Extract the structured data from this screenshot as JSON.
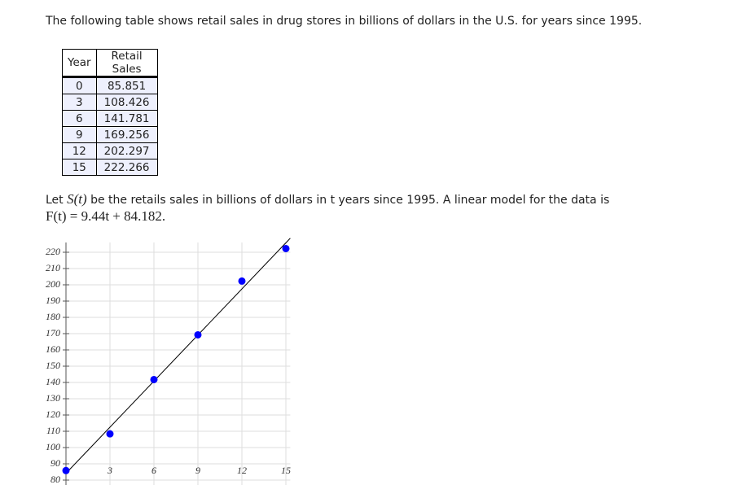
{
  "intro": "The following table shows retail sales in drug stores in billions of dollars in the U.S. for years since 1995.",
  "table": {
    "header": [
      "Year",
      "Retail Sales"
    ],
    "rows": [
      [
        "0",
        "85.851"
      ],
      [
        "3",
        "108.426"
      ],
      [
        "6",
        "141.781"
      ],
      [
        "9",
        "169.256"
      ],
      [
        "12",
        "202.297"
      ],
      [
        "15",
        "222.266"
      ]
    ]
  },
  "model": {
    "let": "Let",
    "function": "S(t)",
    "text": "be the retails sales in billions of dollars in t years since 1995. A linear model for the data is",
    "formula": "F(t) = 9.44t + 84.182."
  },
  "chart_data": {
    "type": "scatter",
    "x": [
      0,
      3,
      6,
      9,
      12,
      15
    ],
    "values": [
      85.851,
      108.426,
      141.781,
      169.256,
      202.297,
      222.266
    ],
    "color": "#0000ff",
    "fit_line": {
      "slope": 9.44,
      "intercept": 84.182,
      "color": "#000000"
    },
    "xlim": [
      0,
      15.3
    ],
    "ylim": [
      77,
      226
    ],
    "xticks": [
      3,
      6,
      9,
      12,
      15
    ],
    "yticks": [
      80,
      90,
      100,
      110,
      120,
      130,
      140,
      150,
      160,
      170,
      180,
      190,
      200,
      210,
      220
    ],
    "grid": true
  }
}
